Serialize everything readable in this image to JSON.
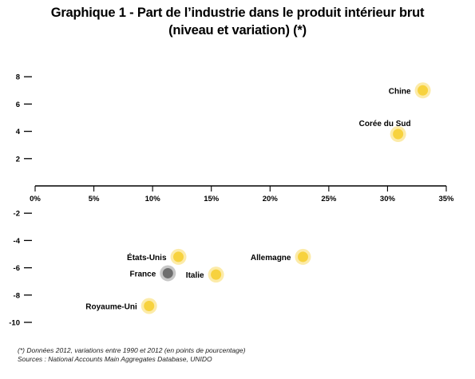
{
  "title_line1": "Graphique 1 - Part de l’industrie dans le produit intérieur brut",
  "title_line2": "(niveau et variation) (*)",
  "note": "(*) Données 2012, variations entre 1990 et 2012 (en points de pourcentage)",
  "source": "Sources : National Accounts Main Aggregates Database, UNIDO",
  "colors": {
    "highlight": "#f7d23e",
    "highlight_halo": "#fbe89a",
    "france": "#6e6e6e",
    "france_halo": "#bdbdbd",
    "axis": "#000000"
  },
  "chart_data": {
    "type": "scatter",
    "title": "Graphique 1 - Part de l’industrie dans le produit intérieur brut (niveau et variation) (*)",
    "xlim": [
      0,
      35
    ],
    "ylim": [
      -10,
      9
    ],
    "x_ticks": [
      0,
      5,
      10,
      15,
      20,
      25,
      30,
      35
    ],
    "x_tick_labels": [
      "0%",
      "5%",
      "10%",
      "15%",
      "20%",
      "25%",
      "30%",
      "35%"
    ],
    "y_ticks": [
      8,
      6,
      4,
      2,
      -2,
      -4,
      -6,
      -8,
      -10
    ],
    "y_tick_labels": [
      "8",
      "6",
      "4",
      "2",
      "-2",
      "-4",
      "-6",
      "-8",
      "-10"
    ],
    "grid": false,
    "points": [
      {
        "label": "Chine",
        "x": 33.0,
        "y": 7.0,
        "label_side": "left",
        "highlight": "yellow"
      },
      {
        "label": "Corée du Sud",
        "x": 30.9,
        "y": 3.8,
        "label_side": "above-left",
        "highlight": "yellow"
      },
      {
        "label": "États-Unis",
        "x": 12.2,
        "y": -5.2,
        "label_side": "left",
        "highlight": "yellow"
      },
      {
        "label": "Allemagne",
        "x": 22.8,
        "y": -5.2,
        "label_side": "left",
        "highlight": "yellow"
      },
      {
        "label": "France",
        "x": 11.3,
        "y": -6.4,
        "label_side": "left",
        "highlight": "grey"
      },
      {
        "label": "Italie",
        "x": 15.4,
        "y": -6.5,
        "label_side": "left",
        "highlight": "yellow"
      },
      {
        "label": "Royaume-Uni",
        "x": 9.7,
        "y": -8.8,
        "label_side": "left",
        "highlight": "yellow"
      }
    ]
  }
}
